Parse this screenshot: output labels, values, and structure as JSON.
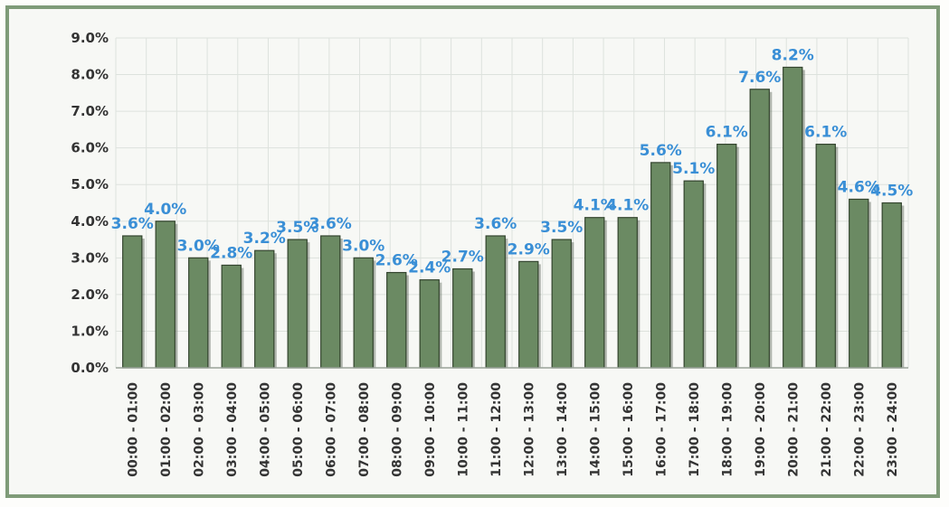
{
  "chart_data": {
    "type": "bar",
    "title": "",
    "xlabel": "",
    "ylabel": "",
    "ylim": [
      0,
      9
    ],
    "y_ticks": [
      "0.0%",
      "1.0%",
      "2.0%",
      "3.0%",
      "4.0%",
      "5.0%",
      "6.0%",
      "7.0%",
      "8.0%",
      "9.0%"
    ],
    "grid": true,
    "legend": "none",
    "categories": [
      "00:00 - 01:00",
      "01:00 - 02:00",
      "02:00 - 03:00",
      "03:00 - 04:00",
      "04:00 - 05:00",
      "05:00 - 06:00",
      "06:00 - 07:00",
      "07:00 - 08:00",
      "08:00 - 09:00",
      "09:00 - 10:00",
      "10:00 - 11:00",
      "11:00 - 12:00",
      "12:00 - 13:00",
      "13:00 - 14:00",
      "14:00 - 15:00",
      "15:00 - 16:00",
      "16:00 - 17:00",
      "17:00 - 18:00",
      "18:00 - 19:00",
      "19:00 - 20:00",
      "20:00 - 21:00",
      "21:00 - 22:00",
      "22:00 - 23:00",
      "23:00 - 24:00"
    ],
    "values": [
      3.6,
      4.0,
      3.0,
      2.8,
      3.2,
      3.5,
      3.6,
      3.0,
      2.6,
      2.4,
      2.7,
      3.6,
      2.9,
      3.5,
      4.1,
      4.1,
      5.6,
      5.1,
      6.1,
      7.6,
      8.2,
      6.1,
      4.6,
      4.5
    ],
    "data_labels": [
      "3.6%",
      "4.0%",
      "3.0%",
      "2.8%",
      "3.2%",
      "3.5%",
      "3.6%",
      "3.0%",
      "2.6%",
      "2.4%",
      "2.7%",
      "3.6%",
      "2.9%",
      "3.5%",
      "4.1%",
      "4.1%",
      "5.6%",
      "5.1%",
      "6.1%",
      "7.6%",
      "8.2%",
      "6.1%",
      "4.6%",
      "4.5%"
    ],
    "colors": {
      "bar": "#6b8a63",
      "bar_edge": "#34452f",
      "data_label": "#3a8fd6",
      "grid": "#dde2dd",
      "frame": "#7f9b78"
    }
  }
}
